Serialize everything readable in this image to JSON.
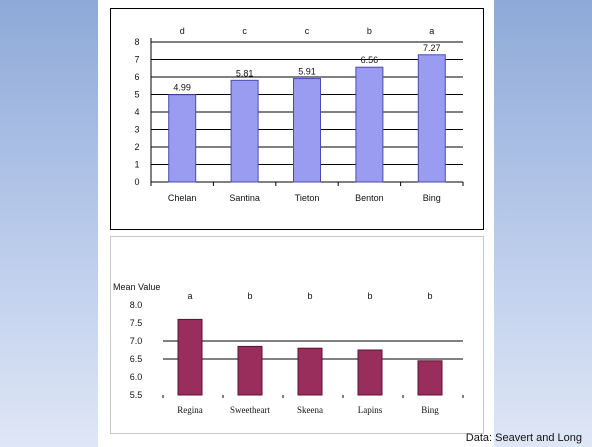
{
  "colors": {
    "chart1_bar": "#9a9cf2",
    "chart1_bar_stroke": "#4a4cb0",
    "chart2_bar": "#992d5c",
    "chart2_bar_stroke": "#5a1434"
  },
  "source_note": "Data: Seavert and Long",
  "chart_data": [
    {
      "type": "bar",
      "categories": [
        "Chelan",
        "Santina",
        "Tieton",
        "Benton",
        "Bing"
      ],
      "values": [
        4.99,
        5.81,
        5.91,
        6.56,
        7.27
      ],
      "value_labels": [
        "4.99",
        "5.81",
        "5.91",
        "6.56",
        "7.27"
      ],
      "significance": [
        "d",
        "c",
        "c",
        "b",
        "a"
      ],
      "ylim": [
        0,
        8
      ],
      "yticks": [
        "0",
        "1",
        "2",
        "3",
        "4",
        "5",
        "6",
        "7",
        "8"
      ],
      "grid": true,
      "xlabel": "",
      "ylabel": ""
    },
    {
      "type": "bar",
      "categories": [
        "Regina",
        "Sweetheart",
        "Skeena",
        "Lapins",
        "Bing"
      ],
      "values": [
        7.6,
        6.85,
        6.8,
        6.75,
        6.45
      ],
      "significance": [
        "a",
        "b",
        "b",
        "b",
        "b"
      ],
      "ylim": [
        5.5,
        8.0
      ],
      "yticks": [
        "8.0",
        "7.5",
        "7.0",
        "6.5",
        "6.0",
        "5.5"
      ],
      "ylabel": "Mean Value",
      "xlabel": "",
      "grid": true
    }
  ]
}
